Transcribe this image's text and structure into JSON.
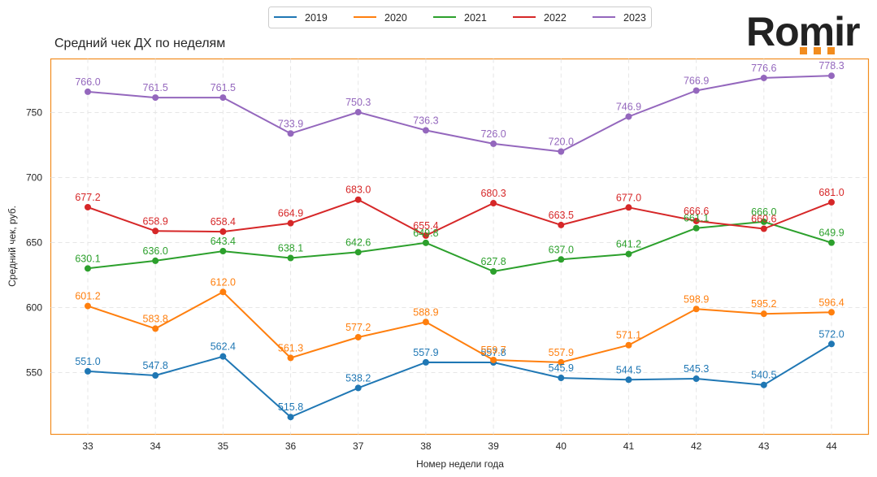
{
  "brand": {
    "logo_text": "Romir",
    "accent_color": "#f28c1e"
  },
  "chart_data": {
    "type": "line",
    "title": "Средний чек ДХ по неделям",
    "xlabel": "Номер недели года",
    "ylabel": "Средний чек, руб.",
    "x": [
      33,
      34,
      35,
      36,
      37,
      38,
      39,
      40,
      41,
      42,
      43,
      44
    ],
    "categories": [
      "33",
      "34",
      "35",
      "36",
      "37",
      "38",
      "39",
      "40",
      "41",
      "42",
      "43",
      "44"
    ],
    "ylim": [
      502.5,
      791.25
    ],
    "yticks": [
      550,
      600,
      650,
      700,
      750
    ],
    "ytick_labels": [
      "550",
      "600",
      "650",
      "700",
      "750"
    ],
    "grid": true,
    "legend_position": "top-center",
    "series": [
      {
        "name": "2019",
        "color": "#1f77b4",
        "values": [
          551.0,
          547.8,
          562.4,
          515.8,
          538.2,
          557.9,
          557.8,
          545.9,
          544.5,
          545.3,
          540.5,
          572.0
        ]
      },
      {
        "name": "2020",
        "color": "#ff7f0e",
        "values": [
          601.2,
          583.8,
          612.0,
          561.3,
          577.2,
          588.9,
          559.7,
          557.9,
          571.1,
          598.9,
          595.2,
          596.4
        ]
      },
      {
        "name": "2021",
        "color": "#2ca02c",
        "values": [
          630.1,
          636.0,
          643.4,
          638.1,
          642.6,
          649.8,
          627.8,
          637.0,
          641.2,
          661.1,
          666.0,
          649.9
        ]
      },
      {
        "name": "2022",
        "color": "#d62728",
        "values": [
          677.2,
          658.9,
          658.4,
          664.9,
          683.0,
          655.4,
          680.3,
          663.5,
          677.0,
          666.6,
          660.6,
          681.0
        ]
      },
      {
        "name": "2023",
        "color": "#9467bd",
        "values": [
          766.0,
          761.5,
          761.5,
          733.9,
          750.3,
          736.3,
          726.0,
          720.0,
          746.9,
          766.9,
          776.6,
          778.3
        ]
      }
    ]
  }
}
